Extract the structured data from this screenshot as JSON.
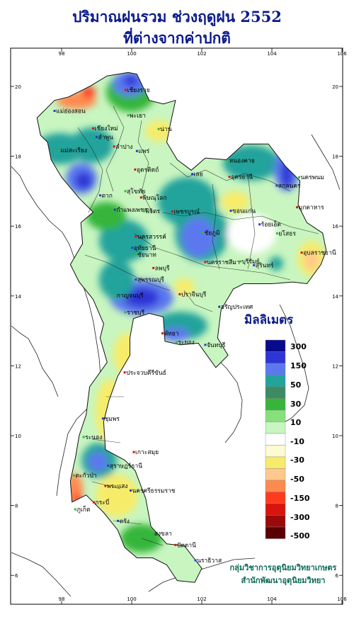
{
  "title": {
    "line1": "ปริมาณฝนรวม ช่วงฤดูฝน 2552",
    "line2": "ที่ต่างจากค่าปกติ"
  },
  "axes": {
    "lon_ticks": [
      "98",
      "100",
      "102",
      "104",
      "106"
    ],
    "lat_ticks": [
      "20",
      "18",
      "16",
      "14",
      "12",
      "10",
      "8",
      "6"
    ]
  },
  "legend": {
    "title": "มิลลิเมตร",
    "labels": [
      "300",
      "150",
      "50",
      "30",
      "10",
      "-10",
      "-30",
      "-50",
      "-150",
      "-300",
      "-500"
    ],
    "colors": [
      "#0a0a8c",
      "#2d35d6",
      "#5b78ef",
      "#22a39c",
      "#3e8a63",
      "#36b53a",
      "#86e07c",
      "#c8f5c0",
      "#ffffff",
      "#fffbd1",
      "#f7ec6a",
      "#ffc88c",
      "#ff8a50",
      "#ff3b1f",
      "#d8140c",
      "#9a0a0a",
      "#5a0000"
    ]
  },
  "credit": {
    "line1": "กลุ่มวิชาการอุตุนิยมวิทยาเกษตร",
    "line2": "สำนักพัฒนาอุตุนิยมวิทยา"
  },
  "places": [
    {
      "name": "เชียงราย",
      "lon": 99.83,
      "lat": 19.9
    },
    {
      "name": "แม่ฮ่องสอน",
      "lon": 97.8,
      "lat": 19.3
    },
    {
      "name": "พะเยา",
      "lon": 99.9,
      "lat": 19.17
    },
    {
      "name": "เชียงใหม่",
      "lon": 98.9,
      "lat": 18.8
    },
    {
      "name": "ลำพูน",
      "lon": 99.0,
      "lat": 18.55
    },
    {
      "name": "น่าน",
      "lon": 100.77,
      "lat": 18.78
    },
    {
      "name": "ลำปาง",
      "lon": 99.5,
      "lat": 18.28
    },
    {
      "name": "แพร่",
      "lon": 100.15,
      "lat": 18.15
    },
    {
      "name": "แม่สะเรียง",
      "lon": 97.93,
      "lat": 18.17
    },
    {
      "name": "อุตรดิตถ์",
      "lon": 100.1,
      "lat": 17.62
    },
    {
      "name": "ตาก",
      "lon": 99.1,
      "lat": 16.88
    },
    {
      "name": "สุโขทัย",
      "lon": 99.82,
      "lat": 17.0
    },
    {
      "name": "พิษณุโลก",
      "lon": 100.27,
      "lat": 16.82
    },
    {
      "name": "กำแพงเพชร",
      "lon": 99.52,
      "lat": 16.47
    },
    {
      "name": "พิจิตร",
      "lon": 100.35,
      "lat": 16.43
    },
    {
      "name": "เพชรบูรณ์",
      "lon": 101.16,
      "lat": 16.42
    },
    {
      "name": "เลย",
      "lon": 101.73,
      "lat": 17.49
    },
    {
      "name": "หนองคาย",
      "lon": 102.74,
      "lat": 17.88
    },
    {
      "name": "อุดรธานี",
      "lon": 102.79,
      "lat": 17.41
    },
    {
      "name": "สกลนคร",
      "lon": 104.14,
      "lat": 17.16
    },
    {
      "name": "นครพนม",
      "lon": 104.78,
      "lat": 17.4
    },
    {
      "name": "มุกดาหาร",
      "lon": 104.72,
      "lat": 16.54
    },
    {
      "name": "ขอนแก่น",
      "lon": 102.83,
      "lat": 16.44
    },
    {
      "name": "ชัยภูมิ",
      "lon": 102.03,
      "lat": 15.81
    },
    {
      "name": "นครสวรรค์",
      "lon": 100.12,
      "lat": 15.7
    },
    {
      "name": "อุทัยธานี",
      "lon": 100.02,
      "lat": 15.38
    },
    {
      "name": "ชัยนาท",
      "lon": 100.12,
      "lat": 15.18
    },
    {
      "name": "ลพบุรี",
      "lon": 100.62,
      "lat": 14.8
    },
    {
      "name": "สุพรรณบุรี",
      "lon": 100.12,
      "lat": 14.47
    },
    {
      "name": "กาญจนบุรี",
      "lon": 99.53,
      "lat": 14.02
    },
    {
      "name": "นครราชสีมา",
      "lon": 102.1,
      "lat": 14.97
    },
    {
      "name": "ร้อยเอ็ด",
      "lon": 103.65,
      "lat": 16.05
    },
    {
      "name": "ยโสธร",
      "lon": 104.15,
      "lat": 15.79
    },
    {
      "name": "อุบลราชธานี",
      "lon": 104.85,
      "lat": 15.24
    },
    {
      "name": "สุรินทร์",
      "lon": 103.49,
      "lat": 14.88
    },
    {
      "name": "บุรีรัมย์",
      "lon": 103.1,
      "lat": 14.99
    },
    {
      "name": "ปราจีนบุรี",
      "lon": 101.37,
      "lat": 14.05
    },
    {
      "name": "อรัญประเทศ",
      "lon": 102.5,
      "lat": 13.69
    },
    {
      "name": "ราชบุรี",
      "lon": 99.82,
      "lat": 13.53
    },
    {
      "name": "พัทยา",
      "lon": 100.88,
      "lat": 12.93
    },
    {
      "name": "จันทบุรี",
      "lon": 102.1,
      "lat": 12.6
    },
    {
      "name": "ระยอง",
      "lon": 101.28,
      "lat": 12.68
    },
    {
      "name": "ประจวบคีรีขันธ์",
      "lon": 99.8,
      "lat": 11.81
    },
    {
      "name": "ชุมพร",
      "lon": 99.18,
      "lat": 10.49
    },
    {
      "name": "ระนอง",
      "lon": 98.63,
      "lat": 9.96
    },
    {
      "name": "เกาะสมุย",
      "lon": 100.06,
      "lat": 9.53
    },
    {
      "name": "สุราษฎร์ธานี",
      "lon": 99.33,
      "lat": 9.14
    },
    {
      "name": "ตะกั่วป่า",
      "lon": 98.35,
      "lat": 8.86
    },
    {
      "name": "พระแสง",
      "lon": 99.25,
      "lat": 8.56
    },
    {
      "name": "นครศรีธรรมราช",
      "lon": 99.97,
      "lat": 8.43
    },
    {
      "name": "ภูเก็ต",
      "lon": 98.39,
      "lat": 7.89
    },
    {
      "name": "กระบี่",
      "lon": 98.92,
      "lat": 8.09
    },
    {
      "name": "ตรัง",
      "lon": 99.61,
      "lat": 7.56
    },
    {
      "name": "สงขลา",
      "lon": 100.6,
      "lat": 7.2
    },
    {
      "name": "ปัตตานี",
      "lon": 101.25,
      "lat": 6.87
    },
    {
      "name": "นราธิวาส",
      "lon": 101.82,
      "lat": 6.43
    }
  ]
}
